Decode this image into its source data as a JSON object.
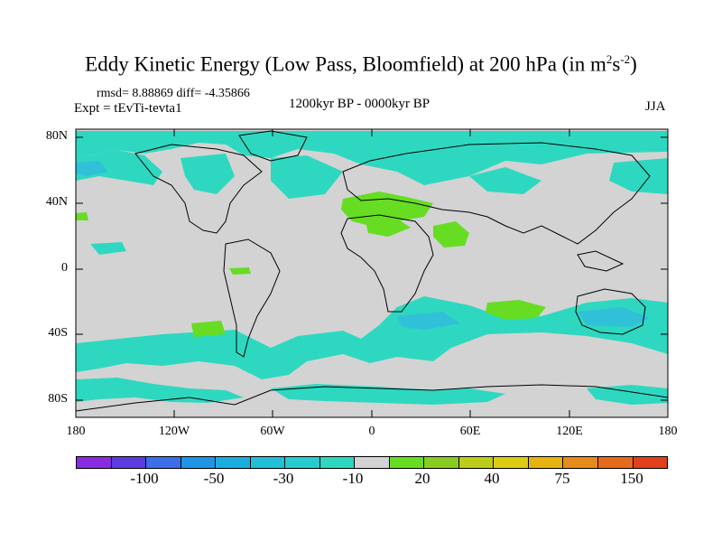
{
  "header": {
    "title_main": "Eddy Kinetic Energy (Low Pass, Bloomfield) at 200 hPa (in m",
    "title_sup1": "2",
    "title_mid": "s",
    "title_sup2": "-2",
    "title_end": ")",
    "stats": "rmsd= 8.88869 diff= -4.35866",
    "experiment": "Expt = tEvTi-tevta1",
    "period": "1200kyr BP - 0000kyr BP",
    "season": "JJA"
  },
  "axes": {
    "lat_labels": [
      "80N",
      "40N",
      "0",
      "40S",
      "80S"
    ],
    "lon_labels": [
      "180",
      "120W",
      "60W",
      "0",
      "60E",
      "120E",
      "180"
    ]
  },
  "colors": {
    "background_zero": "#d3d3d3",
    "neg_light": "#2ed8c0",
    "neg_mid": "#30c0d8",
    "pos_light": "#66dd22",
    "pos_mid": "#88cc22"
  },
  "colorbar": {
    "colors": [
      "#8a2be2",
      "#5c3ce0",
      "#3c6ee8",
      "#1e96e6",
      "#19aede",
      "#22c0d6",
      "#28ccd0",
      "#2ed8c0",
      "#d3d3d3",
      "#66dd22",
      "#88cc22",
      "#bbcc1a",
      "#ddcc11",
      "#e6b211",
      "#e68a1a",
      "#e66a1e",
      "#e0401a"
    ],
    "labels": [
      "-100",
      "-50",
      "-30",
      "-10",
      "20",
      "40",
      "75",
      "150"
    ]
  }
}
